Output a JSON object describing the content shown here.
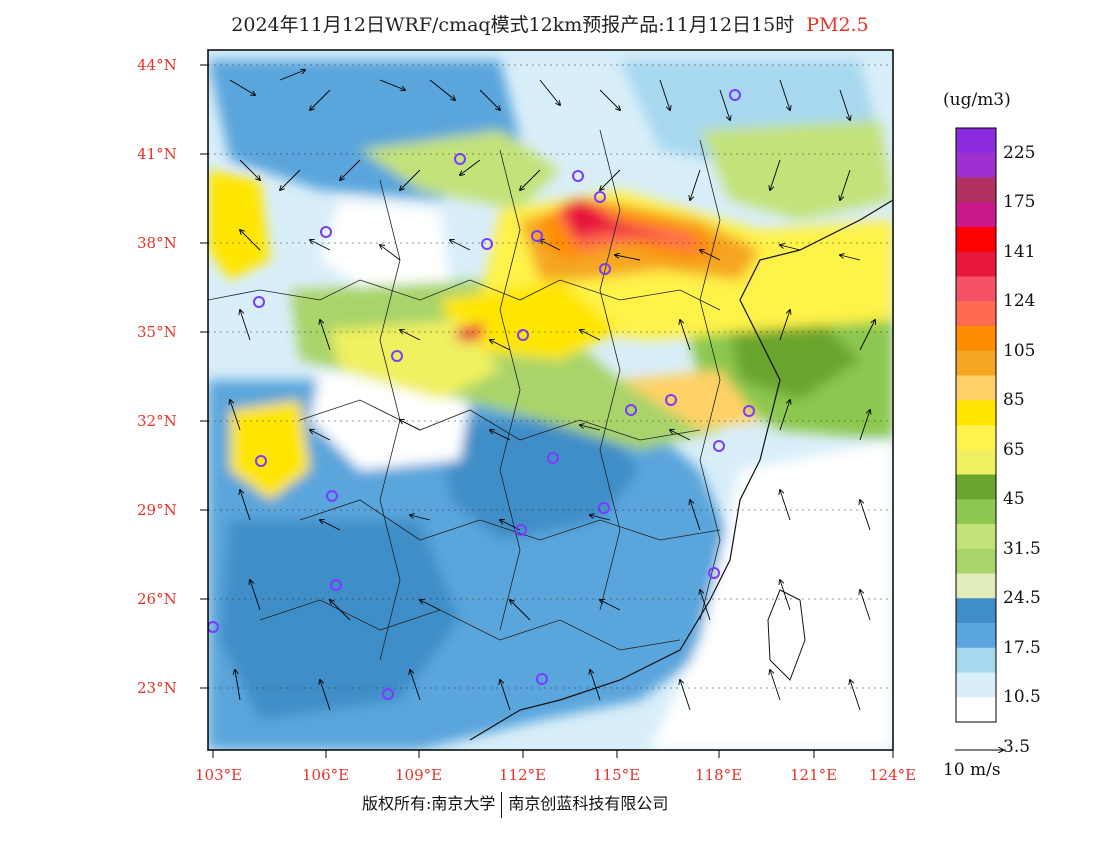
{
  "title": {
    "main": "2024年11月12日WRF/cmaq模式12km预报产品:11月12日15时",
    "pollutant": "PM2.5"
  },
  "map": {
    "lat_labels": [
      "44°N",
      "41°N",
      "38°N",
      "35°N",
      "32°N",
      "29°N",
      "26°N",
      "23°N"
    ],
    "lon_labels": [
      "103°E",
      "106°E",
      "109°E",
      "112°E",
      "115°E",
      "118°E",
      "121°E",
      "124°E"
    ]
  },
  "colorbar": {
    "units": "(ug/m3)",
    "tick_labels": [
      "225",
      "175",
      "141",
      "124",
      "105",
      "85",
      "65",
      "45",
      "31.5",
      "24.5",
      "17.5",
      "10.5",
      "3.5"
    ],
    "colors": [
      "#8a2be2",
      "#9e2fd0",
      "#b03060",
      "#c8188a",
      "#ff0000",
      "#e8183c",
      "#f55266",
      "#ff6a50",
      "#ff8c00",
      "#f5a623",
      "#ffd166",
      "#ffe600",
      "#fff24a",
      "#f0f060",
      "#6aa52e",
      "#8cc850",
      "#c3e27a",
      "#a8d46a",
      "#dfedbb",
      "#3f8ec8",
      "#5aa5dc",
      "#a7d8f0",
      "#d8eef9",
      "#ffffff"
    ]
  },
  "wind_legend": {
    "label": "10 m/s"
  },
  "footer": {
    "left": "版权所有:南京大学",
    "right": "南京创蓝科技有限公司"
  }
}
